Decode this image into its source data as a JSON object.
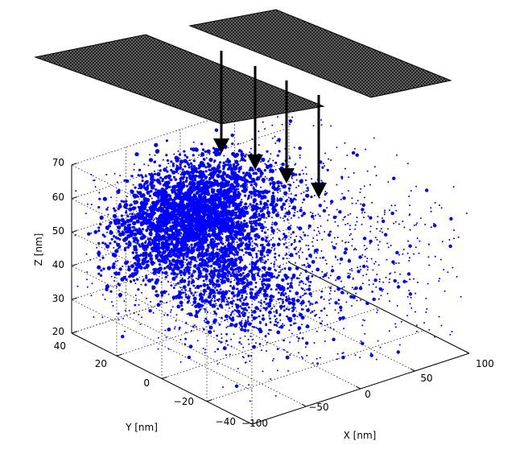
{
  "chart_data": {
    "type": "scatter",
    "title": "",
    "xlabel": "X [nm]",
    "ylabel": "Y [nm]",
    "zlabel": "Z [nm]",
    "xlim": [
      -100,
      100
    ],
    "ylim": [
      -40,
      40
    ],
    "zlim": [
      20,
      70
    ],
    "x_ticks": [
      "−100",
      "−50",
      "0",
      "50",
      "100"
    ],
    "y_ticks": [
      "−40",
      "−20",
      "0",
      "20",
      "40"
    ],
    "z_ticks": [
      "20",
      "30",
      "40",
      "50",
      "60",
      "70"
    ],
    "grid": true,
    "point_color": "#0000ff",
    "overlay": {
      "element": "two tilted hatched rectangular plates above the point cloud",
      "plate_color": "#000000",
      "arrows": 4,
      "arrow_color": "#000000"
    },
    "cloud": {
      "core": {
        "x_range": [
          -60,
          20
        ],
        "y_range": [
          0,
          40
        ],
        "z_range": [
          35,
          68
        ]
      },
      "halo": {
        "x_range": [
          -100,
          100
        ],
        "y_range": [
          -40,
          40
        ],
        "z_range": [
          20,
          70
        ]
      }
    }
  }
}
